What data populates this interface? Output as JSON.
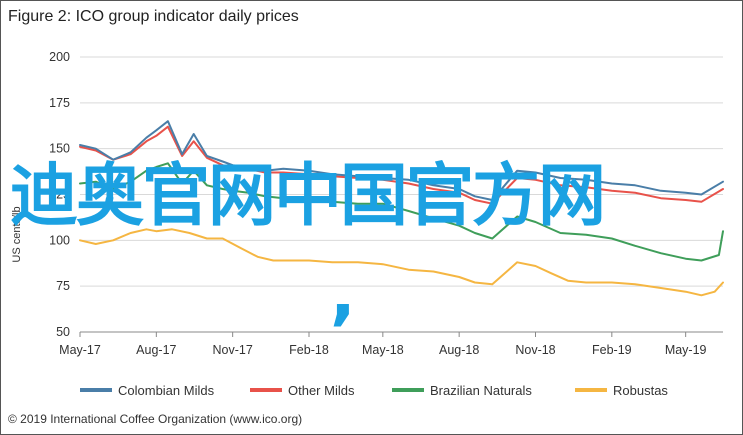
{
  "title": "Figure 2: ICO group indicator daily prices",
  "copyright": "© 2019 International Coffee Organization (www.ico.org)",
  "watermark": {
    "text": "迪奥官网中国官方网",
    "comma": ","
  },
  "colors": {
    "colombian_milds": "#4a7ea8",
    "other_milds": "#e8524a",
    "brazilian_naturals": "#3f9e5a",
    "robustas": "#f5b642",
    "grid": "#d9d9d9",
    "axis": "#888888",
    "watermark": "#1ba1e2"
  },
  "chart_data": {
    "type": "line",
    "title": "Figure 2: ICO group indicator daily prices",
    "ylabel": "US cents/lb",
    "ylim": [
      50,
      200
    ],
    "yticks": [
      50,
      75,
      100,
      125,
      150,
      175,
      200
    ],
    "xlim": [
      "2017-05-01",
      "2019-06-15"
    ],
    "xticks": [
      {
        "date": "2017-05-01",
        "label": "May-17"
      },
      {
        "date": "2017-08-01",
        "label": "Aug-17"
      },
      {
        "date": "2017-11-01",
        "label": "Nov-17"
      },
      {
        "date": "2018-02-01",
        "label": "Feb-18"
      },
      {
        "date": "2018-05-01",
        "label": "May-18"
      },
      {
        "date": "2018-08-01",
        "label": "Aug-18"
      },
      {
        "date": "2018-11-01",
        "label": "Nov-18"
      },
      {
        "date": "2019-02-01",
        "label": "Feb-19"
      },
      {
        "date": "2019-05-01",
        "label": "May-19"
      }
    ],
    "grid": true,
    "legend_position": "bottom",
    "series": [
      {
        "name": "Colombian Milds",
        "color": "#4a7ea8",
        "points": [
          [
            "2017-05-01",
            152
          ],
          [
            "2017-05-20",
            150
          ],
          [
            "2017-06-10",
            144
          ],
          [
            "2017-07-01",
            148
          ],
          [
            "2017-07-20",
            156
          ],
          [
            "2017-08-01",
            160
          ],
          [
            "2017-08-15",
            165
          ],
          [
            "2017-09-01",
            147
          ],
          [
            "2017-09-15",
            158
          ],
          [
            "2017-10-01",
            146
          ],
          [
            "2017-10-20",
            143
          ],
          [
            "2017-11-01",
            141
          ],
          [
            "2017-11-20",
            140
          ],
          [
            "2017-12-10",
            138
          ],
          [
            "2018-01-01",
            139
          ],
          [
            "2018-02-01",
            138
          ],
          [
            "2018-03-01",
            136
          ],
          [
            "2018-04-01",
            135
          ],
          [
            "2018-05-01",
            134
          ],
          [
            "2018-06-01",
            133
          ],
          [
            "2018-07-01",
            130
          ],
          [
            "2018-08-01",
            128
          ],
          [
            "2018-08-20",
            124
          ],
          [
            "2018-09-10",
            122
          ],
          [
            "2018-10-10",
            138
          ],
          [
            "2018-11-01",
            137
          ],
          [
            "2018-12-01",
            134
          ],
          [
            "2019-01-01",
            133
          ],
          [
            "2019-02-01",
            131
          ],
          [
            "2019-03-01",
            130
          ],
          [
            "2019-04-01",
            127
          ],
          [
            "2019-05-01",
            126
          ],
          [
            "2019-05-20",
            125
          ],
          [
            "2019-06-15",
            132
          ]
        ]
      },
      {
        "name": "Other Milds",
        "color": "#e8524a",
        "points": [
          [
            "2017-05-01",
            151
          ],
          [
            "2017-05-20",
            149
          ],
          [
            "2017-06-10",
            144
          ],
          [
            "2017-07-01",
            147
          ],
          [
            "2017-07-20",
            154
          ],
          [
            "2017-08-01",
            157
          ],
          [
            "2017-08-15",
            162
          ],
          [
            "2017-09-01",
            146
          ],
          [
            "2017-09-15",
            154
          ],
          [
            "2017-10-01",
            145
          ],
          [
            "2017-10-20",
            141
          ],
          [
            "2017-11-01",
            140
          ],
          [
            "2017-11-20",
            139
          ],
          [
            "2017-12-10",
            137
          ],
          [
            "2018-01-01",
            137
          ],
          [
            "2018-02-01",
            136
          ],
          [
            "2018-03-01",
            135
          ],
          [
            "2018-04-01",
            134
          ],
          [
            "2018-05-01",
            133
          ],
          [
            "2018-06-01",
            131
          ],
          [
            "2018-07-01",
            128
          ],
          [
            "2018-08-01",
            126
          ],
          [
            "2018-08-20",
            122
          ],
          [
            "2018-09-10",
            120
          ],
          [
            "2018-10-10",
            134
          ],
          [
            "2018-11-01",
            133
          ],
          [
            "2018-12-01",
            130
          ],
          [
            "2019-01-01",
            129
          ],
          [
            "2019-02-01",
            127
          ],
          [
            "2019-03-01",
            126
          ],
          [
            "2019-04-01",
            123
          ],
          [
            "2019-05-01",
            122
          ],
          [
            "2019-05-20",
            121
          ],
          [
            "2019-06-15",
            128
          ]
        ]
      },
      {
        "name": "Brazilian Naturals",
        "color": "#3f9e5a",
        "points": [
          [
            "2017-05-01",
            131
          ],
          [
            "2017-05-20",
            132
          ],
          [
            "2017-06-10",
            128
          ],
          [
            "2017-07-01",
            132
          ],
          [
            "2017-07-20",
            138
          ],
          [
            "2017-08-01",
            140
          ],
          [
            "2017-08-15",
            142
          ],
          [
            "2017-09-01",
            131
          ],
          [
            "2017-09-15",
            138
          ],
          [
            "2017-10-01",
            130
          ],
          [
            "2017-10-20",
            128
          ],
          [
            "2017-11-01",
            127
          ],
          [
            "2017-11-20",
            126
          ],
          [
            "2017-12-10",
            124
          ],
          [
            "2018-01-01",
            123
          ],
          [
            "2018-02-01",
            122
          ],
          [
            "2018-03-01",
            121
          ],
          [
            "2018-04-01",
            120
          ],
          [
            "2018-05-01",
            120
          ],
          [
            "2018-06-01",
            116
          ],
          [
            "2018-07-01",
            112
          ],
          [
            "2018-08-01",
            108
          ],
          [
            "2018-08-20",
            104
          ],
          [
            "2018-09-10",
            101
          ],
          [
            "2018-10-10",
            113
          ],
          [
            "2018-11-01",
            110
          ],
          [
            "2018-12-01",
            104
          ],
          [
            "2019-01-01",
            103
          ],
          [
            "2019-02-01",
            101
          ],
          [
            "2019-03-01",
            97
          ],
          [
            "2019-04-01",
            93
          ],
          [
            "2019-05-01",
            90
          ],
          [
            "2019-05-20",
            89
          ],
          [
            "2019-06-10",
            92
          ],
          [
            "2019-06-15",
            105
          ]
        ]
      },
      {
        "name": "Robustas",
        "color": "#f5b642",
        "points": [
          [
            "2017-05-01",
            100
          ],
          [
            "2017-05-20",
            98
          ],
          [
            "2017-06-10",
            100
          ],
          [
            "2017-07-01",
            104
          ],
          [
            "2017-07-20",
            106
          ],
          [
            "2017-08-01",
            105
          ],
          [
            "2017-08-20",
            106
          ],
          [
            "2017-09-10",
            104
          ],
          [
            "2017-10-01",
            101
          ],
          [
            "2017-10-20",
            101
          ],
          [
            "2017-11-10",
            96
          ],
          [
            "2017-12-01",
            91
          ],
          [
            "2017-12-20",
            89
          ],
          [
            "2018-01-10",
            89
          ],
          [
            "2018-02-01",
            89
          ],
          [
            "2018-03-01",
            88
          ],
          [
            "2018-04-01",
            88
          ],
          [
            "2018-05-01",
            87
          ],
          [
            "2018-06-01",
            84
          ],
          [
            "2018-07-01",
            83
          ],
          [
            "2018-08-01",
            80
          ],
          [
            "2018-08-20",
            77
          ],
          [
            "2018-09-10",
            76
          ],
          [
            "2018-10-10",
            88
          ],
          [
            "2018-11-01",
            86
          ],
          [
            "2018-11-20",
            82
          ],
          [
            "2018-12-10",
            78
          ],
          [
            "2019-01-01",
            77
          ],
          [
            "2019-02-01",
            77
          ],
          [
            "2019-03-01",
            76
          ],
          [
            "2019-04-01",
            74
          ],
          [
            "2019-05-01",
            72
          ],
          [
            "2019-05-20",
            70
          ],
          [
            "2019-06-05",
            72
          ],
          [
            "2019-06-15",
            77
          ]
        ]
      }
    ]
  }
}
